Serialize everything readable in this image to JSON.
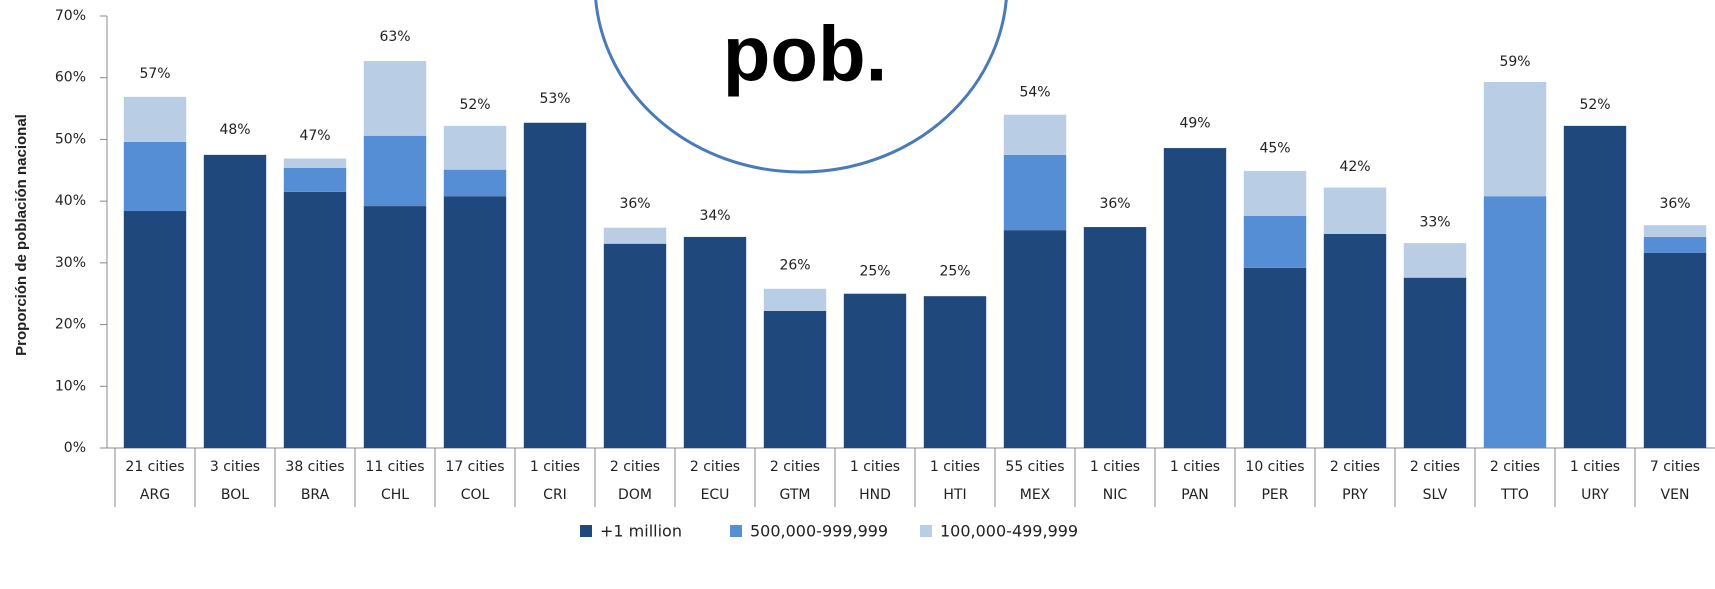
{
  "chart_data": {
    "type": "stacked_bar",
    "y_axis_label": "Proporción de población nacional",
    "annotation": "pob.",
    "groups": [
      "21 cities",
      "3 cities",
      "38 cities",
      "11 cities",
      "17 cities",
      "1 cities",
      "2 cities",
      "2 cities",
      "2 cities",
      "1 cities",
      "1 cities",
      "55 cities",
      "1 cities",
      "1 cities",
      "10 cities",
      "2 cities",
      "2 cities",
      "2 cities",
      "1 cities",
      "7 cities"
    ],
    "categories": [
      "ARG",
      "BOL",
      "BRA",
      "CHL",
      "COL",
      "CRI",
      "DOM",
      "ECU",
      "GTM",
      "HND",
      "HTI",
      "MEX",
      "NIC",
      "PAN",
      "PER",
      "PRY",
      "SLV",
      "TTO",
      "URY",
      "VEN"
    ],
    "series": [
      {
        "name": "+1 million",
        "color": "#1f497d",
        "values": [
          38.4,
          47.5,
          41.5,
          39.2,
          40.8,
          52.7,
          33.1,
          34.2,
          22.2,
          25.0,
          24.6,
          35.3,
          35.8,
          48.6,
          29.2,
          34.7,
          27.6,
          0,
          52.2,
          31.6
        ]
      },
      {
        "name": "500,000-999,999",
        "color": "#558ed5",
        "values": [
          11.2,
          0,
          3.9,
          11.4,
          4.3,
          0,
          0,
          0,
          0,
          0,
          0,
          12.2,
          0,
          0,
          8.4,
          0,
          0,
          40.8,
          0,
          2.6
        ]
      },
      {
        "name": "100,000-499,999",
        "color": "#b9cde5",
        "values": [
          7.3,
          0,
          1.5,
          12.1,
          7.1,
          0,
          2.6,
          0,
          3.6,
          0,
          0,
          6.5,
          0,
          0,
          7.3,
          7.5,
          5.6,
          18.5,
          0,
          1.9
        ]
      }
    ],
    "totals": {
      "values": [
        57,
        48,
        47,
        63,
        52,
        53,
        36,
        34,
        26,
        25,
        25,
        54,
        36,
        49,
        45,
        42,
        33,
        59,
        52,
        36
      ],
      "value_labels": [
        "57%",
        "48%",
        "47%",
        "63%",
        "52%",
        "53%",
        "36%",
        "34%",
        "26%",
        "25%",
        "25%",
        "54%",
        "36%",
        "49%",
        "45%",
        "42%",
        "33%",
        "59%",
        "52%",
        "36%"
      ]
    },
    "ylim": [
      0,
      70
    ],
    "yticks": [
      {
        "value": 0,
        "label": "0%"
      },
      {
        "value": 10,
        "label": "10%"
      },
      {
        "value": 20,
        "label": "20%"
      },
      {
        "value": 30,
        "label": "30%"
      },
      {
        "value": 40,
        "label": "40%"
      },
      {
        "value": 50,
        "label": "50%"
      },
      {
        "value": 60,
        "label": "60%"
      },
      {
        "value": 70,
        "label": "70%"
      }
    ],
    "legend": "bottom"
  }
}
